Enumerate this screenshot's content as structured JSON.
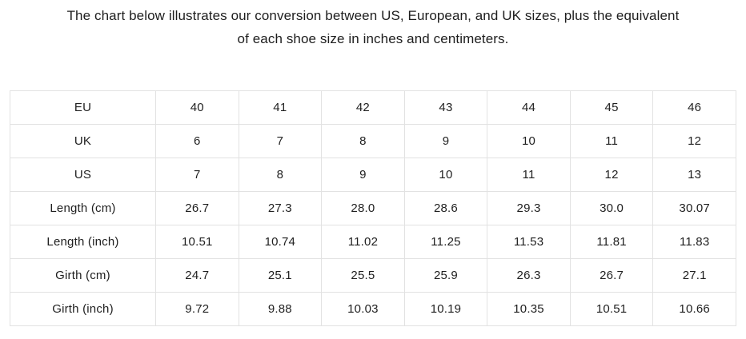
{
  "intro": {
    "line1": "The chart below illustrates our conversion between US, European, and UK sizes, plus the equivalent",
    "line2": "of each shoe size in inches and centimeters."
  },
  "colors": {
    "background": "#ffffff",
    "table_border": "#e2e2e2",
    "text": "#1f1f1f"
  },
  "size_table": {
    "rows": [
      {
        "label": "EU",
        "values": [
          "40",
          "41",
          "42",
          "43",
          "44",
          "45",
          "46"
        ]
      },
      {
        "label": "UK",
        "values": [
          "6",
          "7",
          "8",
          "9",
          "10",
          "11",
          "12"
        ]
      },
      {
        "label": "US",
        "values": [
          "7",
          "8",
          "9",
          "10",
          "11",
          "12",
          "13"
        ]
      },
      {
        "label": "Length (cm)",
        "values": [
          "26.7",
          "27.3",
          "28.0",
          "28.6",
          "29.3",
          "30.0",
          "30.07"
        ]
      },
      {
        "label": "Length (inch)",
        "values": [
          "10.51",
          "10.74",
          "11.02",
          "11.25",
          "11.53",
          "11.81",
          "11.83"
        ]
      },
      {
        "label": "Girth (cm)",
        "values": [
          "24.7",
          "25.1",
          "25.5",
          "25.9",
          "26.3",
          "26.7",
          "27.1"
        ]
      },
      {
        "label": "Girth (inch)",
        "values": [
          "9.72",
          "9.88",
          "10.03",
          "10.19",
          "10.35",
          "10.51",
          "10.66"
        ]
      }
    ]
  }
}
